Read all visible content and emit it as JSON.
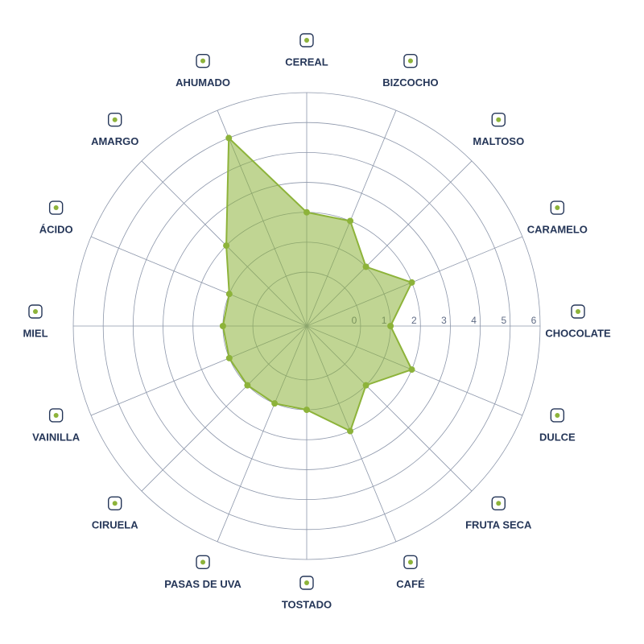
{
  "chart_data": {
    "type": "radar",
    "categories": [
      "CEREAL",
      "BIZCOCHO",
      "MALTOSO",
      "CARAMELO",
      "CHOCOLATE",
      "DULCE",
      "FRUTA SECA",
      "CAFÉ",
      "TOSTADO",
      "PASAS DE UVA",
      "CIRUELA",
      "VAINILLA",
      "MIEL",
      "ÁCIDO",
      "AMARGO",
      "AHUMADO"
    ],
    "values": [
      2,
      2,
      1,
      2,
      1,
      2,
      1,
      2,
      1,
      1,
      1,
      1,
      1,
      1,
      2,
      5
    ],
    "ylim": [
      -1.8,
      6
    ],
    "yticks": [
      0,
      1,
      2,
      3,
      4,
      5,
      6
    ],
    "color": "#8db33a",
    "grid": true
  }
}
